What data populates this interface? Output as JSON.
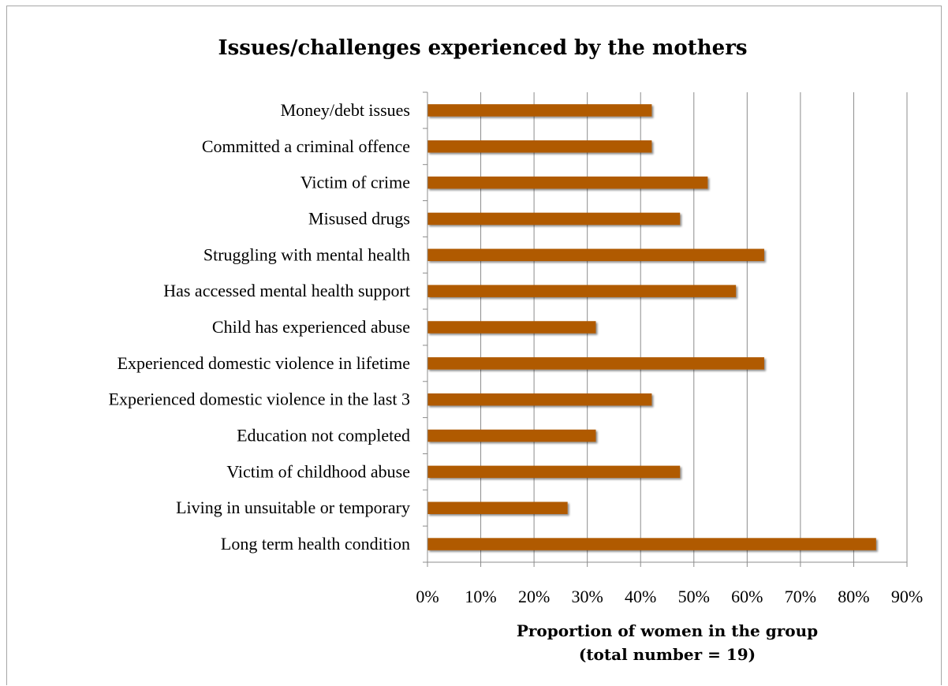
{
  "chart_data": {
    "type": "bar",
    "orientation": "horizontal",
    "title": "Issues/challenges experienced by the mothers",
    "xlabel_lines": [
      "Proportion of women in the group",
      "(total number = 19)"
    ],
    "ylabel": "",
    "categories": [
      "Money/debt issues",
      "Committed a criminal offence",
      "Victim of crime",
      "Misused drugs",
      "Struggling with mental health",
      "Has accessed mental health support",
      "Child has experienced abuse",
      "Experienced domestic violence in lifetime",
      "Experienced domestic violence in the last 3",
      "Education not completed",
      "Victim of childhood abuse",
      "Living in unsuitable or temporary",
      "Long term health condition"
    ],
    "values": [
      0.421,
      0.421,
      0.526,
      0.474,
      0.632,
      0.579,
      0.316,
      0.632,
      0.421,
      0.316,
      0.474,
      0.263,
      0.842
    ],
    "xlim": [
      0,
      0.9
    ],
    "xticks": [
      "0%",
      "10%",
      "20%",
      "30%",
      "40%",
      "50%",
      "60%",
      "70%",
      "80%",
      "90%"
    ],
    "bar_color": "#b05a00",
    "grid": true,
    "legend": "none"
  }
}
